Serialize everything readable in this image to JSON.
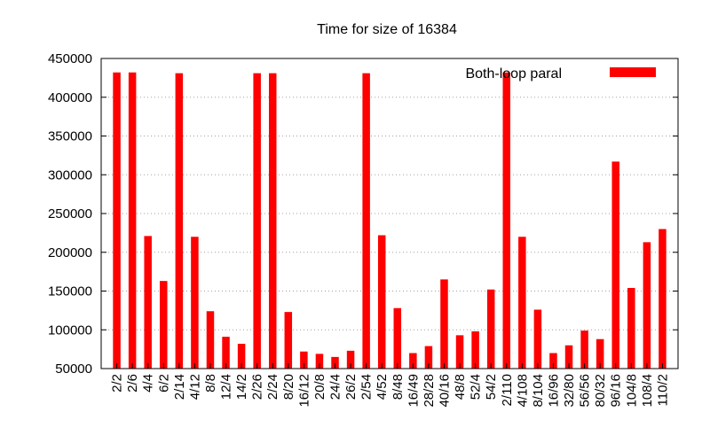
{
  "chart_data": {
    "type": "bar",
    "title": "Time for size of 16384",
    "xlabel": "",
    "ylabel": "",
    "ylim": [
      50000,
      450000
    ],
    "yticks": [
      50000,
      100000,
      150000,
      200000,
      250000,
      300000,
      350000,
      400000,
      450000
    ],
    "grid": true,
    "legend_position": "top-right",
    "categories": [
      "2/2",
      "2/6",
      "4/4",
      "6/2",
      "2/14",
      "4/12",
      "8/8",
      "12/4",
      "14/2",
      "2/26",
      "2/24",
      "8/20",
      "16/12",
      "20/8",
      "24/4",
      "26/2",
      "2/54",
      "4/52",
      "8/48",
      "16/49",
      "28/28",
      "40/16",
      "48/8",
      "52/4",
      "54/2",
      "2/110",
      "4/108",
      "8/104",
      "16/96",
      "32/80",
      "56/56",
      "80/32",
      "96/16",
      "104/8",
      "108/4",
      "110/2"
    ],
    "series": [
      {
        "name": "Both-loop paral",
        "color": "#ff0000",
        "values": [
          432000,
          432000,
          221000,
          163000,
          431000,
          220000,
          124000,
          91000,
          82000,
          431000,
          431000,
          123000,
          72000,
          69000,
          65000,
          73000,
          431000,
          222000,
          128000,
          70000,
          79000,
          165000,
          93000,
          98000,
          152000,
          432000,
          220000,
          126000,
          70000,
          80000,
          99000,
          88000,
          317000,
          154000,
          213000,
          230000
        ]
      }
    ]
  }
}
